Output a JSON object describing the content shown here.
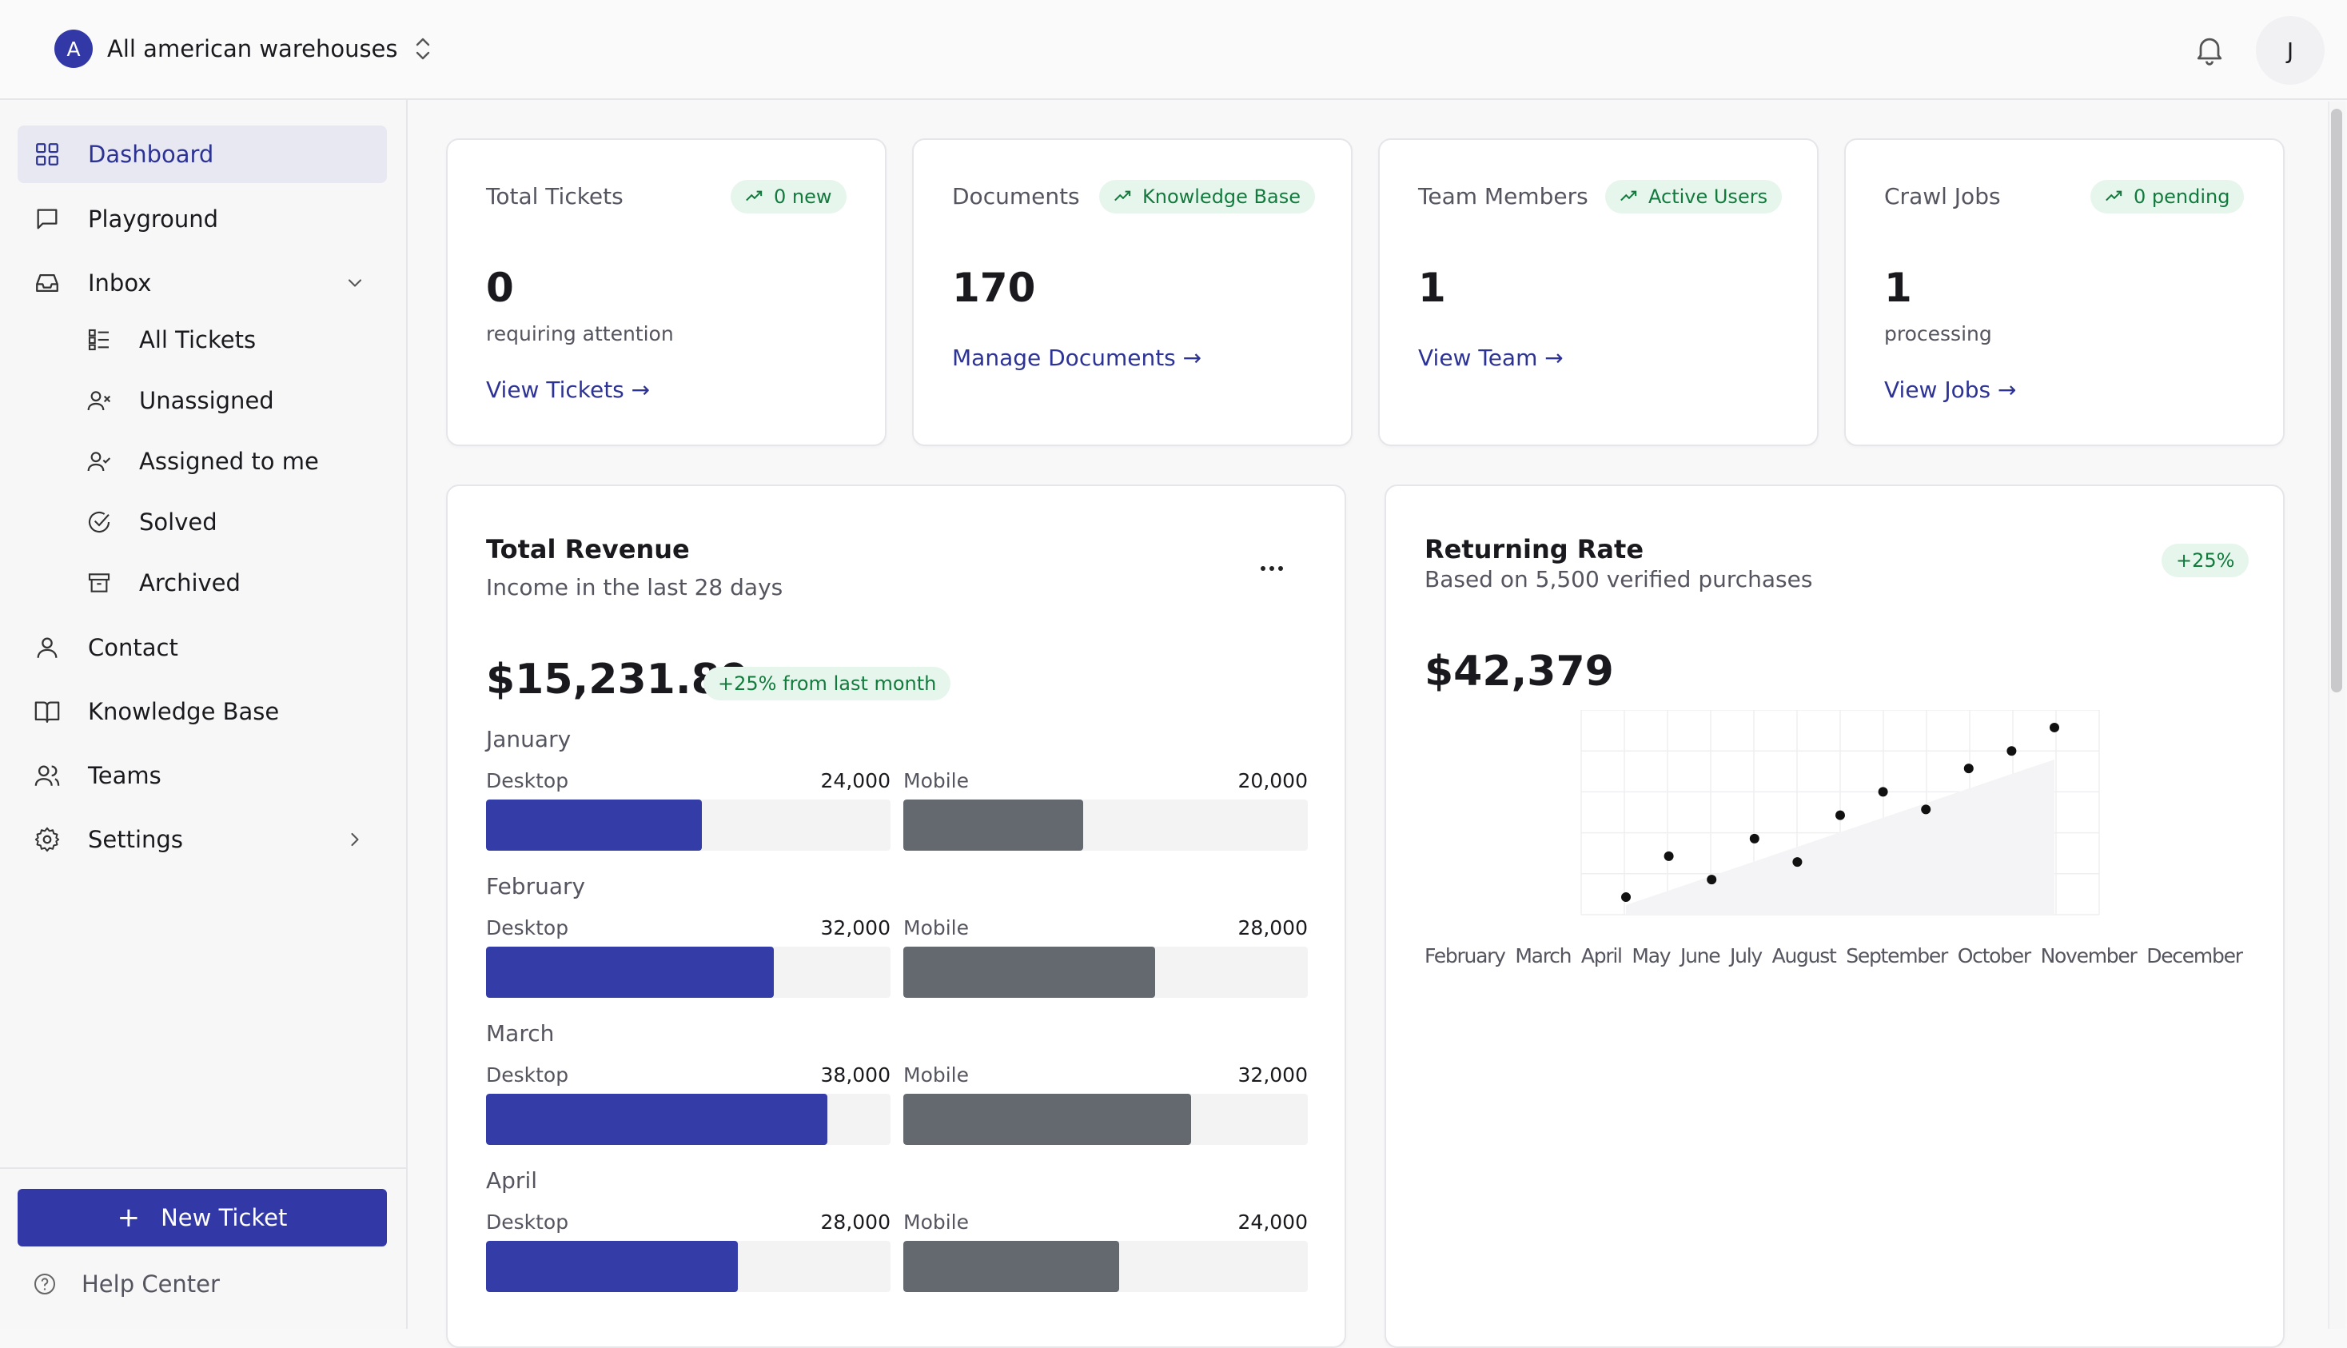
{
  "workspace": {
    "initial": "A",
    "name": "All american warehouses"
  },
  "user": {
    "initial": "J"
  },
  "sidebar": {
    "items": [
      {
        "label": "Dashboard",
        "icon": "grid-icon"
      },
      {
        "label": "Playground",
        "icon": "message-square-icon"
      },
      {
        "label": "Inbox",
        "icon": "inbox-icon"
      },
      {
        "label": "Contact",
        "icon": "user-icon"
      },
      {
        "label": "Knowledge Base",
        "icon": "book-open-icon"
      },
      {
        "label": "Teams",
        "icon": "users-icon"
      },
      {
        "label": "Settings",
        "icon": "gear-icon"
      }
    ],
    "inbox_sub": [
      {
        "label": "All Tickets",
        "icon": "list-icon"
      },
      {
        "label": "Unassigned",
        "icon": "user-x-icon"
      },
      {
        "label": "Assigned to me",
        "icon": "user-check-icon"
      },
      {
        "label": "Solved",
        "icon": "check-circle-icon"
      },
      {
        "label": "Archived",
        "icon": "archive-icon"
      }
    ],
    "new_ticket": "New Ticket",
    "help_center": "Help Center"
  },
  "stats": [
    {
      "title": "Total Tickets",
      "badge": "0 new",
      "value": "0",
      "sub": "requiring attention",
      "link": "View Tickets"
    },
    {
      "title": "Documents",
      "badge": "Knowledge Base",
      "value": "170",
      "sub": "",
      "link": "Manage Documents"
    },
    {
      "title": "Team Members",
      "badge": "Active Users",
      "value": "1",
      "sub": "",
      "link": "View Team"
    },
    {
      "title": "Crawl Jobs",
      "badge": "0 pending",
      "value": "1",
      "sub": "processing",
      "link": "View Jobs"
    }
  ],
  "revenue": {
    "title": "Total Revenue",
    "subtitle": "Income in the last 28 days",
    "amount": "$15,231.89",
    "change": "+25% from last month",
    "desktop_label": "Desktop",
    "mobile_label": "Mobile",
    "max": 45000,
    "months": [
      {
        "name": "January",
        "desktop": 24000,
        "desktop_text": "24,000",
        "mobile": 20000,
        "mobile_text": "20,000"
      },
      {
        "name": "February",
        "desktop": 32000,
        "desktop_text": "32,000",
        "mobile": 28000,
        "mobile_text": "28,000"
      },
      {
        "name": "March",
        "desktop": 38000,
        "desktop_text": "38,000",
        "mobile": 32000,
        "mobile_text": "32,000"
      },
      {
        "name": "April",
        "desktop": 28000,
        "desktop_text": "28,000",
        "mobile": 24000,
        "mobile_text": "24,000"
      }
    ]
  },
  "returning": {
    "title": "Returning Rate",
    "subtitle": "Based on 5,500 verified purchases",
    "badge": "+25%",
    "amount": "$42,379"
  },
  "chart_data": {
    "type": "scatter",
    "title": "Returning Rate",
    "categories": [
      "February",
      "March",
      "April",
      "May",
      "June",
      "July",
      "August",
      "September",
      "October",
      "November",
      "December"
    ],
    "values": [
      1.1,
      1.8,
      1.4,
      2.1,
      1.7,
      2.5,
      2.9,
      2.6,
      3.3,
      3.6,
      4.0
    ],
    "ylim": [
      0.8,
      4.3
    ],
    "grid": true,
    "xlabel": "",
    "ylabel": ""
  },
  "colors": {
    "accent": "#3239a6",
    "desktop_bar": "#343ca8",
    "mobile_bar": "#64686f",
    "badge_bg": "#e6f6ec",
    "badge_text": "#137a3d"
  }
}
